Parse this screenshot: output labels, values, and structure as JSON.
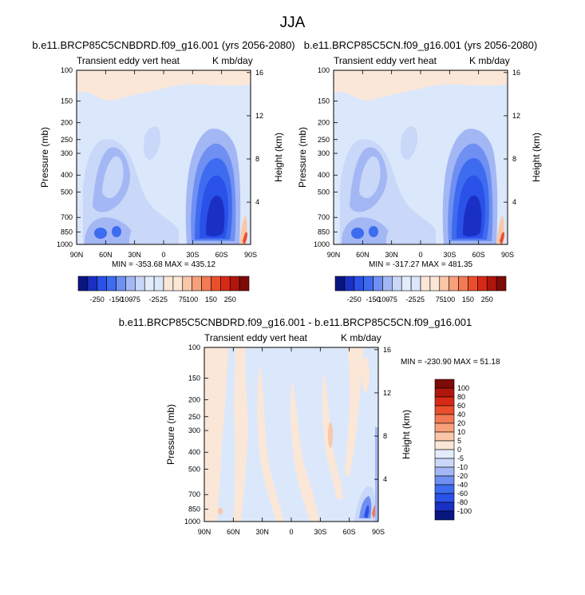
{
  "figure": {
    "title": "JJA"
  },
  "colors": {
    "blue_scale": [
      "#0a1680",
      "#1a2fc4",
      "#2a51e8",
      "#3d6cf0",
      "#6f8ff2",
      "#a3b7f5",
      "#c9d7f8",
      "#e2ecfb"
    ],
    "red_scale": [
      "#fce6d6",
      "#fac6a8",
      "#f7a07a",
      "#f27a54",
      "#ea4f2b",
      "#d62a17",
      "#b0160d",
      "#7d0b08"
    ],
    "neutral_blue": "#dbe7fb",
    "neutral_red": "#fbe7d8"
  },
  "chart_data": [
    {
      "type": "heatmap",
      "id": "top-left",
      "title": "b.e11.BRCP85C5CNBDRD.f09_g16.001 (yrs 2056-2080)",
      "subtitle_left": "Transient eddy vert heat",
      "subtitle_right": "K mb/day",
      "xlabel": "",
      "ylabel": "Pressure (mb)",
      "y2label": "Height (km)",
      "x_ticks": [
        "90N",
        "60N",
        "30N",
        "0",
        "30S",
        "60S",
        "90S"
      ],
      "y_ticks": [
        "100",
        "150",
        "200",
        "250",
        "300",
        "400",
        "500",
        "700",
        "850",
        "1000"
      ],
      "y2_ticks": [
        "16",
        "12",
        "8",
        "4"
      ],
      "min": -353.68,
      "max": 435.12,
      "stats_text": "MIN = -353.68   MAX = 435.12",
      "colorbar": [
        "-250",
        "-150",
        "-100",
        "-75",
        "-25",
        "25",
        "75",
        "100",
        "150",
        "250"
      ]
    },
    {
      "type": "heatmap",
      "id": "top-right",
      "title": "b.e11.BRCP85C5CN.f09_g16.001 (yrs 2056-2080)",
      "subtitle_left": "Transient eddy vert heat",
      "subtitle_right": "K mb/day",
      "xlabel": "",
      "ylabel": "Pressure (mb)",
      "y2label": "Height (km)",
      "x_ticks": [
        "90N",
        "60N",
        "30N",
        "0",
        "30S",
        "60S",
        "90S"
      ],
      "y_ticks": [
        "100",
        "150",
        "200",
        "250",
        "300",
        "400",
        "500",
        "700",
        "850",
        "1000"
      ],
      "y2_ticks": [
        "16",
        "12",
        "8",
        "4"
      ],
      "min": -317.27,
      "max": 481.35,
      "stats_text": "MIN = -317.27   MAX = 481.35",
      "colorbar": [
        "-250",
        "-150",
        "-100",
        "-75",
        "-25",
        "25",
        "75",
        "100",
        "150",
        "250"
      ]
    },
    {
      "type": "heatmap",
      "id": "bottom",
      "title": "b.e11.BRCP85C5CNBDRD.f09_g16.001 - b.e11.BRCP85C5CN.f09_g16.001",
      "subtitle_left": "Transient eddy vert heat",
      "subtitle_right": "K mb/day",
      "xlabel": "",
      "ylabel": "Pressure (mb)",
      "y2label": "Height (km)",
      "x_ticks": [
        "90N",
        "60N",
        "30N",
        "0",
        "30S",
        "60S",
        "90S"
      ],
      "y_ticks": [
        "100",
        "150",
        "200",
        "250",
        "300",
        "400",
        "500",
        "700",
        "850",
        "1000"
      ],
      "y2_ticks": [
        "16",
        "12",
        "8",
        "4"
      ],
      "min": -230.9,
      "max": 51.18,
      "stats_text": "MIN = -230.90   MAX =  51.18",
      "colorbar": [
        "100",
        "80",
        "60",
        "40",
        "20",
        "10",
        "5",
        "0",
        "-5",
        "-10",
        "-20",
        "-40",
        "-60",
        "-80",
        "-100"
      ]
    }
  ]
}
